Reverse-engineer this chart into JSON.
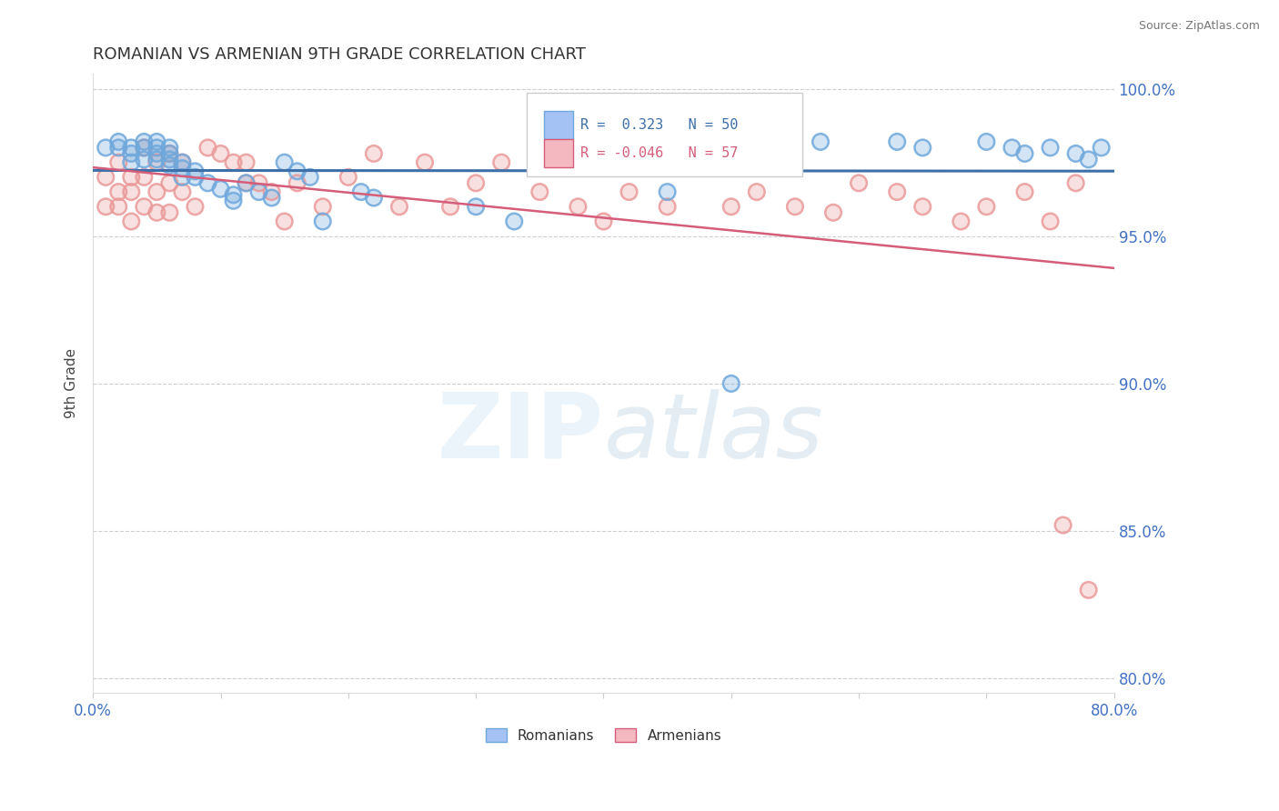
{
  "title": "ROMANIAN VS ARMENIAN 9TH GRADE CORRELATION CHART",
  "source": "Source: ZipAtlas.com",
  "ylabel": "9th Grade",
  "xlim": [
    0.0,
    0.8
  ],
  "ylim": [
    0.795,
    1.005
  ],
  "xticks": [
    0.0,
    0.1,
    0.2,
    0.3,
    0.4,
    0.5,
    0.6,
    0.7,
    0.8
  ],
  "xticklabels": [
    "0.0%",
    "",
    "",
    "",
    "",
    "",
    "",
    "",
    "80.0%"
  ],
  "yticks": [
    0.8,
    0.85,
    0.9,
    0.95,
    1.0
  ],
  "yticklabels": [
    "80.0%",
    "85.0%",
    "90.0%",
    "95.0%",
    "100.0%"
  ],
  "R_romanian": 0.323,
  "N_romanian": 50,
  "R_armenian": -0.046,
  "N_armenian": 57,
  "blue_color": "#6fa8dc",
  "pink_color": "#ea9999",
  "blue_line_color": "#3d6fa8",
  "pink_line_color": "#d45d7a",
  "axis_color": "#4472c4",
  "watermark_color": "#d0e4f0",
  "rom_x": [
    0.01,
    0.02,
    0.02,
    0.03,
    0.03,
    0.03,
    0.04,
    0.04,
    0.04,
    0.05,
    0.05,
    0.05,
    0.05,
    0.06,
    0.06,
    0.06,
    0.06,
    0.07,
    0.07,
    0.07,
    0.08,
    0.08,
    0.09,
    0.1,
    0.11,
    0.11,
    0.12,
    0.13,
    0.14,
    0.15,
    0.16,
    0.17,
    0.18,
    0.21,
    0.22,
    0.3,
    0.33,
    0.4,
    0.45,
    0.5,
    0.57,
    0.63,
    0.65,
    0.7,
    0.72,
    0.73,
    0.75,
    0.77,
    0.78,
    0.79
  ],
  "rom_y": [
    0.98,
    0.982,
    0.98,
    0.98,
    0.978,
    0.975,
    0.982,
    0.98,
    0.976,
    0.982,
    0.98,
    0.978,
    0.976,
    0.98,
    0.978,
    0.976,
    0.974,
    0.975,
    0.973,
    0.97,
    0.972,
    0.97,
    0.968,
    0.966,
    0.964,
    0.962,
    0.968,
    0.965,
    0.963,
    0.975,
    0.972,
    0.97,
    0.955,
    0.965,
    0.963,
    0.96,
    0.955,
    0.98,
    0.965,
    0.9,
    0.982,
    0.982,
    0.98,
    0.982,
    0.98,
    0.978,
    0.98,
    0.978,
    0.976,
    0.98
  ],
  "arm_x": [
    0.01,
    0.01,
    0.02,
    0.02,
    0.02,
    0.03,
    0.03,
    0.03,
    0.04,
    0.04,
    0.04,
    0.05,
    0.05,
    0.05,
    0.06,
    0.06,
    0.06,
    0.07,
    0.07,
    0.08,
    0.09,
    0.1,
    0.11,
    0.12,
    0.12,
    0.13,
    0.14,
    0.15,
    0.16,
    0.18,
    0.2,
    0.22,
    0.24,
    0.26,
    0.28,
    0.3,
    0.32,
    0.35,
    0.38,
    0.4,
    0.42,
    0.45,
    0.48,
    0.5,
    0.52,
    0.55,
    0.58,
    0.6,
    0.63,
    0.65,
    0.68,
    0.7,
    0.73,
    0.75,
    0.76,
    0.77,
    0.78
  ],
  "arm_y": [
    0.97,
    0.96,
    0.975,
    0.965,
    0.96,
    0.97,
    0.965,
    0.955,
    0.98,
    0.97,
    0.96,
    0.975,
    0.965,
    0.958,
    0.978,
    0.968,
    0.958,
    0.975,
    0.965,
    0.96,
    0.98,
    0.978,
    0.975,
    0.975,
    0.968,
    0.968,
    0.965,
    0.955,
    0.968,
    0.96,
    0.97,
    0.978,
    0.96,
    0.975,
    0.96,
    0.968,
    0.975,
    0.965,
    0.96,
    0.955,
    0.965,
    0.96,
    0.975,
    0.96,
    0.965,
    0.96,
    0.958,
    0.968,
    0.965,
    0.96,
    0.955,
    0.96,
    0.965,
    0.955,
    0.852,
    0.968,
    0.83
  ]
}
